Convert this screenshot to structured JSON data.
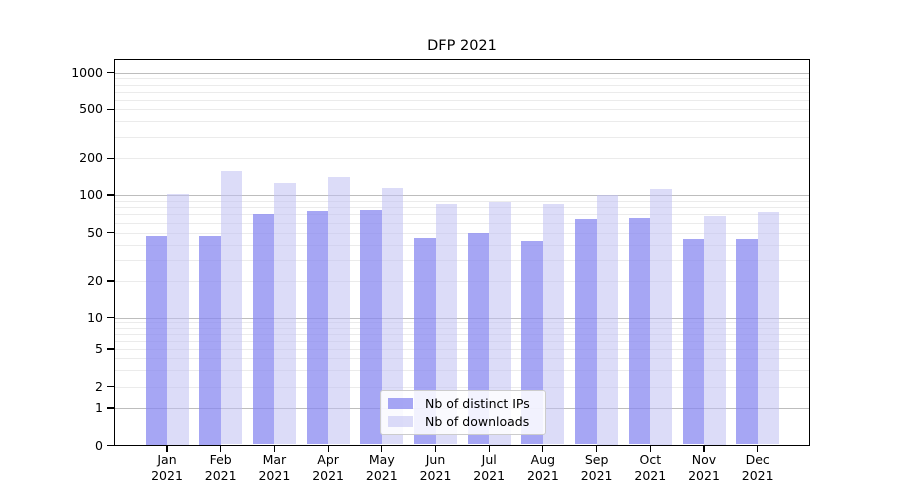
{
  "title": "DFP 2021",
  "chart_data": {
    "type": "bar",
    "title": "DFP 2021",
    "categories": [
      "Jan 2021",
      "Feb 2021",
      "Mar 2021",
      "Apr 2021",
      "May 2021",
      "Jun 2021",
      "Jul 2021",
      "Aug 2021",
      "Sep 2021",
      "Oct 2021",
      "Nov 2021",
      "Dec 2021"
    ],
    "category_months": [
      "Jan",
      "Feb",
      "Mar",
      "Apr",
      "May",
      "Jun",
      "Jul",
      "Aug",
      "Sep",
      "Oct",
      "Nov",
      "Dec"
    ],
    "category_year": "2021",
    "series": [
      {
        "name": "Nb of distinct IPs",
        "color": "#8888F0BF",
        "values": [
          47,
          47,
          70,
          74,
          76,
          45,
          50,
          43,
          64,
          65,
          44,
          44
        ]
      },
      {
        "name": "Nb of downloads",
        "color": "#BFBFF28C",
        "values": [
          102,
          158,
          126,
          140,
          115,
          85,
          88,
          85,
          101,
          113,
          68,
          73
        ]
      }
    ],
    "xlabel": "",
    "ylabel": "",
    "yscale": "symlog",
    "ylim": [
      0,
      1400
    ],
    "yticks": [
      0,
      1,
      2,
      5,
      10,
      20,
      50,
      100,
      200,
      500,
      1000
    ],
    "grid": "both",
    "legend_position": "lower-center-inside"
  },
  "colors": {
    "major_grid": "#bdbdbd",
    "minor_grid": "#ebebeb",
    "spine": "#000000",
    "text": "#000000",
    "legend_border": "#cccccc",
    "legend_background": "rgba(255,255,255,0.85)"
  }
}
